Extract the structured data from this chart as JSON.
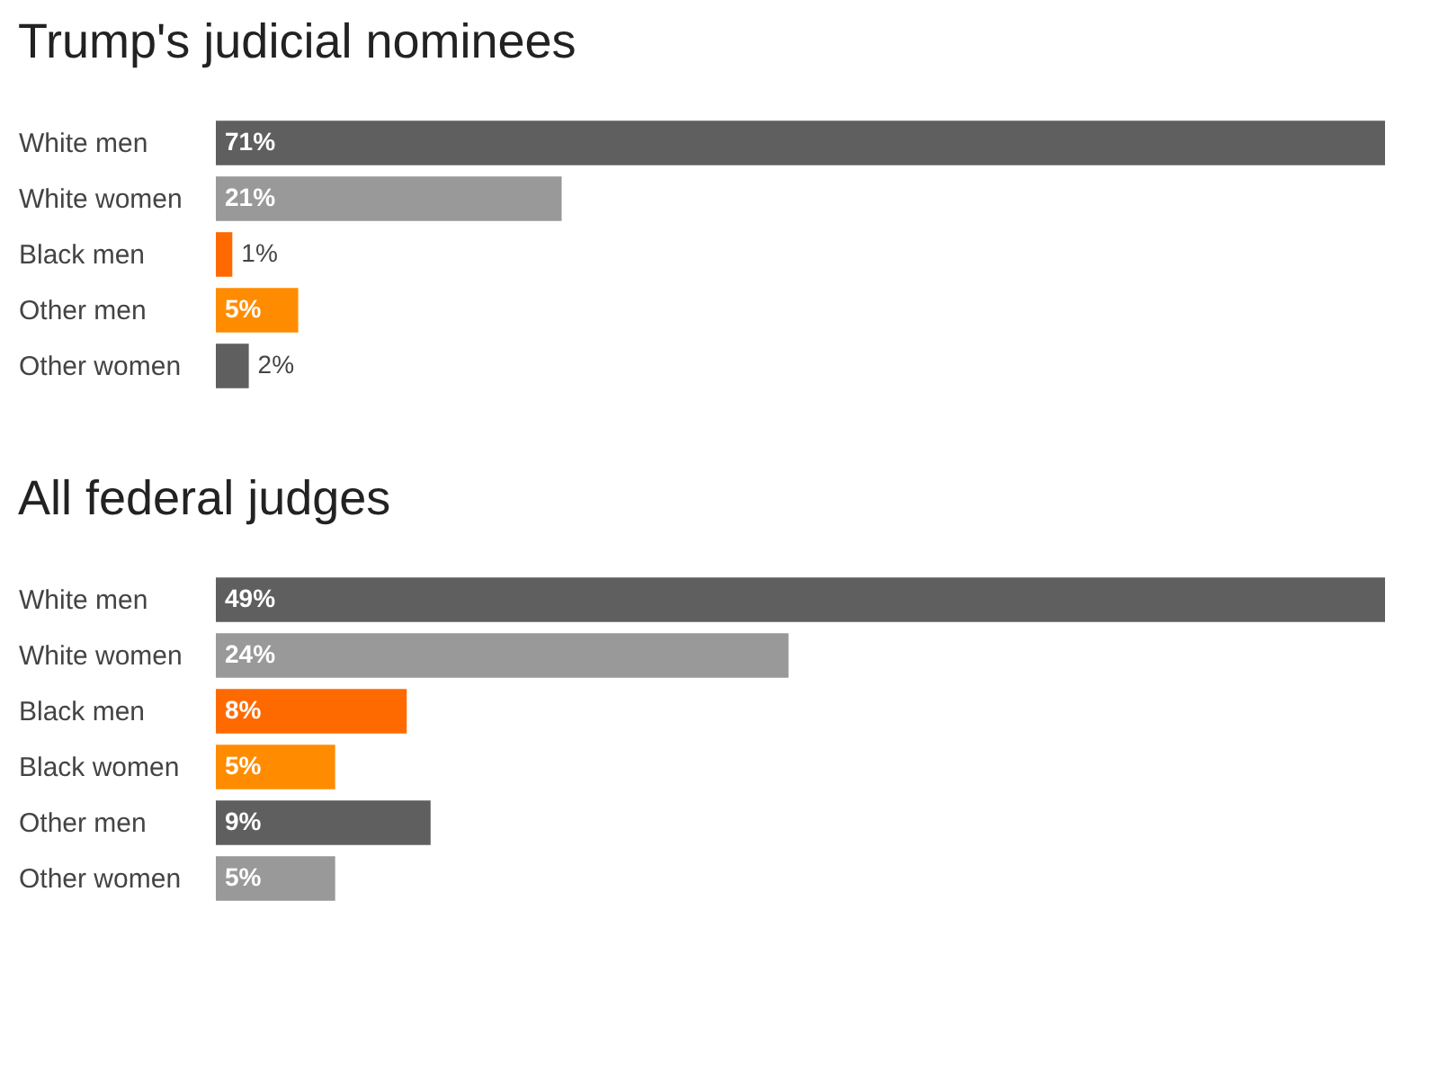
{
  "chart_data": [
    {
      "type": "bar",
      "orientation": "horizontal",
      "title": "Trump's judicial nominees",
      "categories": [
        "White men",
        "White women",
        "Black men",
        "Other men",
        "Other women"
      ],
      "values": [
        71,
        21,
        1,
        5,
        2
      ],
      "colors": [
        "#5f5f5f",
        "#999999",
        "#ff6a00",
        "#ff8c00",
        "#5f5f5f"
      ],
      "value_labels": [
        "71%",
        "21%",
        "1%",
        "5%",
        "2%"
      ]
    },
    {
      "type": "bar",
      "orientation": "horizontal",
      "title": "All federal judges",
      "categories": [
        "White men",
        "White women",
        "Black men",
        "Black women",
        "Other men",
        "Other women"
      ],
      "values": [
        49,
        24,
        8,
        5,
        9,
        5
      ],
      "colors": [
        "#5f5f5f",
        "#999999",
        "#ff6a00",
        "#ff8c00",
        "#5f5f5f",
        "#999999"
      ],
      "value_labels": [
        "49%",
        "24%",
        "8%",
        "5%",
        "9%",
        "5%"
      ]
    }
  ]
}
